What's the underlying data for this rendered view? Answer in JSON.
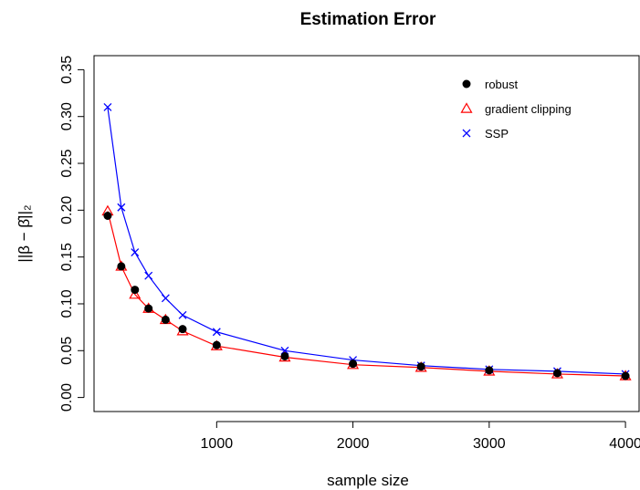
{
  "chart_data": {
    "type": "line",
    "title": "Estimation Error",
    "xlabel": "sample size",
    "ylabel": "||β − β̂||₂",
    "xlim": [
      100,
      4100
    ],
    "ylim": [
      -0.015,
      0.365
    ],
    "x_ticks": [
      1000,
      2000,
      3000,
      4000
    ],
    "y_ticks": [
      0.0,
      0.05,
      0.1,
      0.15,
      0.2,
      0.25,
      0.3,
      0.35
    ],
    "y_tick_labels": [
      "0.00",
      "0.05",
      "0.10",
      "0.15",
      "0.20",
      "0.25",
      "0.30",
      "0.35"
    ],
    "grid": false,
    "legend_position": "top-right",
    "x": [
      200,
      300,
      400,
      500,
      625,
      750,
      1000,
      1500,
      2000,
      2500,
      3000,
      3500,
      4000
    ],
    "series": [
      {
        "name": "robust",
        "color": "#000000",
        "marker": "filled-circle",
        "line": false,
        "values": [
          0.194,
          0.14,
          0.115,
          0.095,
          0.083,
          0.073,
          0.056,
          0.044,
          0.036,
          0.033,
          0.029,
          0.026,
          0.023
        ]
      },
      {
        "name": "gradient clipping",
        "color": "#ff0000",
        "marker": "open-triangle",
        "line": true,
        "values": [
          0.199,
          0.14,
          0.11,
          0.095,
          0.083,
          0.071,
          0.055,
          0.043,
          0.035,
          0.032,
          0.028,
          0.025,
          0.023
        ]
      },
      {
        "name": "SSP",
        "color": "#0000ff",
        "marker": "x",
        "line": true,
        "values": [
          0.31,
          0.203,
          0.155,
          0.13,
          0.106,
          0.088,
          0.07,
          0.05,
          0.04,
          0.034,
          0.03,
          0.028,
          0.025
        ]
      }
    ]
  }
}
